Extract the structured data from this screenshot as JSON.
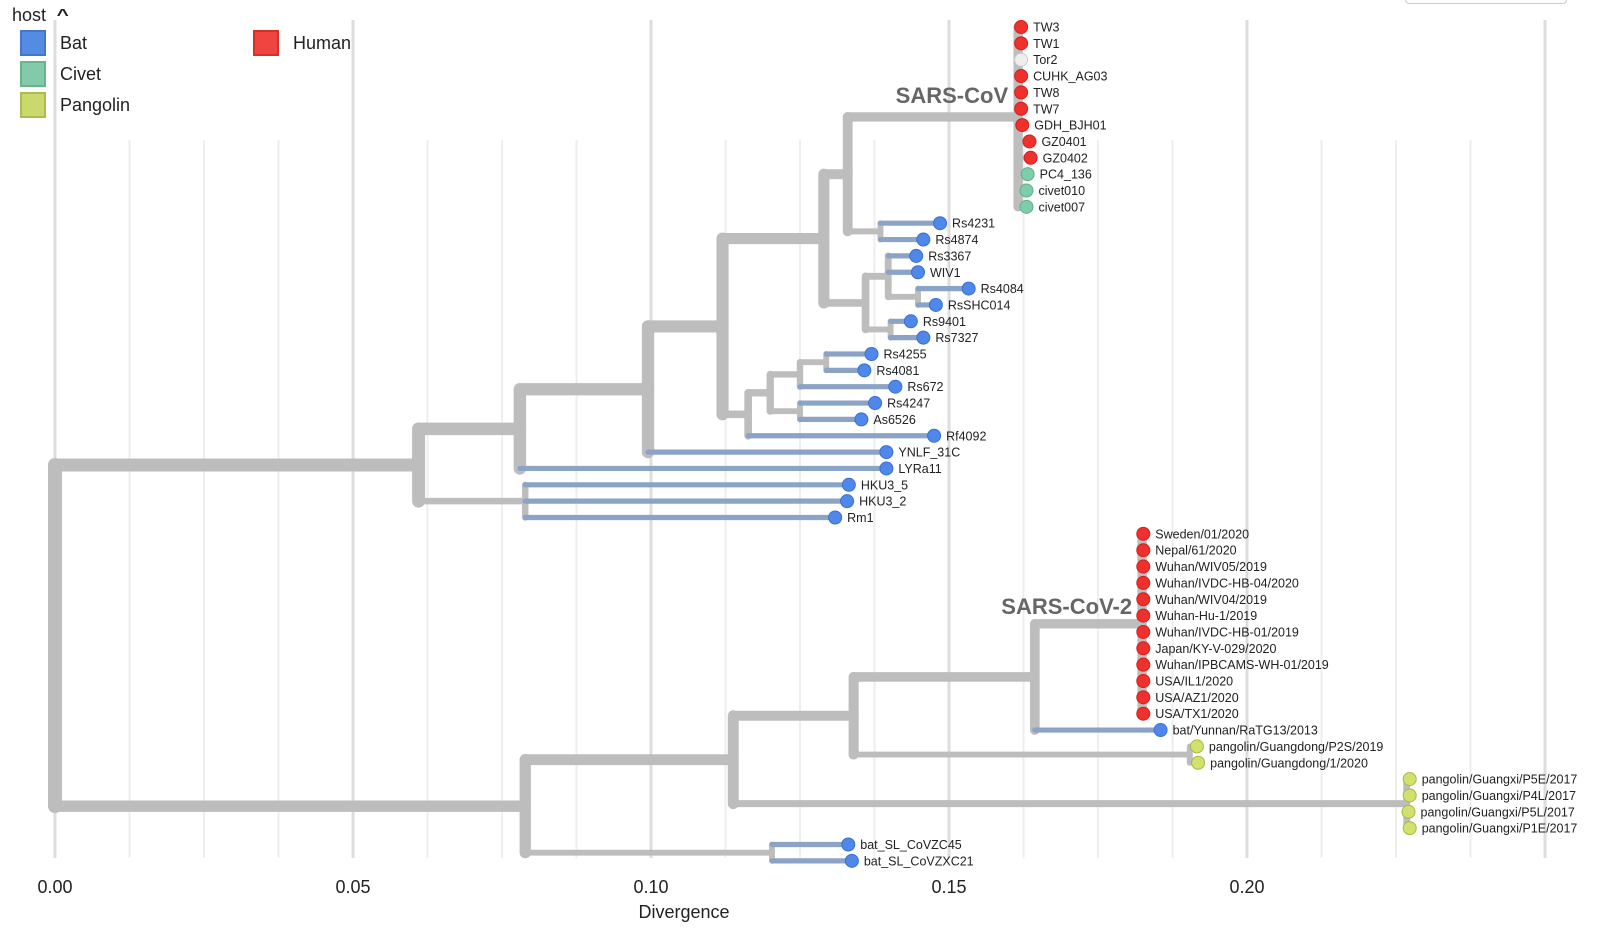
{
  "legend": {
    "title": "host",
    "toggle_icon": "chevron-up-icon",
    "items": [
      {
        "label": "Bat",
        "color": "#4c86e2",
        "border": "#3a6fcc"
      },
      {
        "label": "Civet",
        "color": "#7cc8a6",
        "border": "#5fb08a"
      },
      {
        "label": "Pangolin",
        "color": "#c8d865",
        "border": "#a8b84a"
      },
      {
        "label": "Human",
        "color": "#f03a36",
        "border": "#d42520"
      }
    ]
  },
  "colors": {
    "Bat": "#4f87ea",
    "Civet": "#7dcdab",
    "Pangolin": "#d2e16b",
    "Human": "#f0302c",
    "Unknown": "#eeeeee",
    "branch": "#bdbdbd",
    "bat_branch": "#8ba3c7",
    "grid_major": "#dddddd",
    "grid_minor": "#eeeeee"
  },
  "chart_data": {
    "type": "phylogenetic-tree",
    "xlabel": "Divergence",
    "x_ticks": [
      "0.00",
      "0.05",
      "0.10",
      "0.15",
      "0.20"
    ],
    "x_tick_values": [
      0.0,
      0.05,
      0.1,
      0.15,
      0.2
    ],
    "minor_step": 0.0125,
    "xlim": [
      -0.0093,
      0.2532
    ],
    "clade_labels": [
      {
        "text": "SARS-CoV",
        "node": "sars-cov"
      },
      {
        "text": "SARS-CoV-2",
        "node": "sars-cov-2"
      }
    ],
    "tree": {
      "id": "root",
      "div": 0.0,
      "children": [
        {
          "id": "a",
          "div": 0.061,
          "children": [
            {
              "id": "b",
              "div": 0.078,
              "children": [
                {
                  "id": "c",
                  "div": 0.0995,
                  "children": [
                    {
                      "id": "d",
                      "div": 0.112,
                      "children": [
                        {
                          "id": "e",
                          "div": 0.129,
                          "children": [
                            {
                              "id": "f",
                              "div": 0.133,
                              "children": [
                                {
                                  "id": "sars-cov",
                                  "div": 0.1616,
                                  "children": [
                                    {
                                      "name": "TW3",
                                      "div": 0.1621,
                                      "host": "Human"
                                    },
                                    {
                                      "name": "TW1",
                                      "div": 0.1621,
                                      "host": "Human"
                                    },
                                    {
                                      "name": "Tor2",
                                      "div": 0.1621,
                                      "host": "Unknown"
                                    },
                                    {
                                      "name": "CUHK_AG03",
                                      "div": 0.1621,
                                      "host": "Human"
                                    },
                                    {
                                      "name": "TW8",
                                      "div": 0.1621,
                                      "host": "Human"
                                    },
                                    {
                                      "name": "TW7",
                                      "div": 0.1621,
                                      "host": "Human"
                                    },
                                    {
                                      "name": "GDH_BJH01",
                                      "div": 0.1623,
                                      "host": "Human"
                                    },
                                    {
                                      "name": "GZ0401",
                                      "div": 0.1635,
                                      "host": "Human"
                                    },
                                    {
                                      "name": "GZ0402",
                                      "div": 0.1637,
                                      "host": "Human"
                                    },
                                    {
                                      "name": "PC4_136",
                                      "div": 0.1632,
                                      "host": "Civet"
                                    },
                                    {
                                      "name": "civet010",
                                      "div": 0.163,
                                      "host": "Civet"
                                    },
                                    {
                                      "name": "civet007",
                                      "div": 0.163,
                                      "host": "Civet"
                                    }
                                  ]
                                },
                                {
                                  "id": "g1",
                                  "div": 0.1385,
                                  "children": [
                                    {
                                      "name": "Rs4231",
                                      "div": 0.1485,
                                      "host": "Bat"
                                    },
                                    {
                                      "name": "Rs4874",
                                      "div": 0.1457,
                                      "host": "Bat"
                                    }
                                  ]
                                }
                              ]
                            },
                            {
                              "id": "g",
                              "div": 0.136,
                              "children": [
                                {
                                  "id": "h",
                                  "div": 0.1398,
                                  "children": [
                                    {
                                      "name": "Rs3367",
                                      "div": 0.1445,
                                      "host": "Bat"
                                    },
                                    {
                                      "name": "WIV1",
                                      "div": 0.1448,
                                      "host": "Bat"
                                    },
                                    {
                                      "id": "i",
                                      "div": 0.1448,
                                      "children": [
                                        {
                                          "name": "Rs4084",
                                          "div": 0.1533,
                                          "host": "Bat"
                                        },
                                        {
                                          "name": "RsSHC014",
                                          "div": 0.1478,
                                          "host": "Bat"
                                        }
                                      ]
                                    }
                                  ]
                                },
                                {
                                  "id": "j",
                                  "div": 0.1402,
                                  "children": [
                                    {
                                      "name": "Rs9401",
                                      "div": 0.1436,
                                      "host": "Bat"
                                    },
                                    {
                                      "name": "Rs7327",
                                      "div": 0.1457,
                                      "host": "Bat"
                                    }
                                  ]
                                }
                              ]
                            }
                          ]
                        },
                        {
                          "id": "k",
                          "div": 0.1163,
                          "children": [
                            {
                              "id": "l",
                              "div": 0.12,
                              "children": [
                                {
                                  "id": "m",
                                  "div": 0.125,
                                  "children": [
                                    {
                                      "id": "n",
                                      "div": 0.1294,
                                      "children": [
                                        {
                                          "name": "Rs4255",
                                          "div": 0.137,
                                          "host": "Bat"
                                        },
                                        {
                                          "name": "Rs4081",
                                          "div": 0.1358,
                                          "host": "Bat"
                                        }
                                      ]
                                    },
                                    {
                                      "name": "Rs672",
                                      "div": 0.141,
                                      "host": "Bat"
                                    }
                                  ]
                                },
                                {
                                  "id": "o",
                                  "div": 0.125,
                                  "children": [
                                    {
                                      "name": "Rs4247",
                                      "div": 0.1376,
                                      "host": "Bat"
                                    },
                                    {
                                      "name": "As6526",
                                      "div": 0.1353,
                                      "host": "Bat"
                                    }
                                  ]
                                }
                              ]
                            },
                            {
                              "name": "Rf4092",
                              "div": 0.1475,
                              "host": "Bat"
                            }
                          ]
                        }
                      ]
                    },
                    {
                      "name": "YNLF_31C",
                      "div": 0.1395,
                      "host": "Bat"
                    }
                  ]
                },
                {
                  "name": "LYRa11",
                  "div": 0.1395,
                  "host": "Bat"
                }
              ]
            },
            {
              "id": "p",
              "div": 0.0789,
              "children": [
                {
                  "name": "HKU3_5",
                  "div": 0.1332,
                  "host": "Bat"
                },
                {
                  "name": "HKU3_2",
                  "div": 0.1329,
                  "host": "Bat"
                },
                {
                  "name": "Rm1",
                  "div": 0.1309,
                  "host": "Bat"
                }
              ]
            }
          ]
        },
        {
          "id": "q",
          "div": 0.0789,
          "children": [
            {
              "id": "r",
              "div": 0.1138,
              "children": [
                {
                  "id": "s",
                  "div": 0.134,
                  "children": [
                    {
                      "id": "t",
                      "div": 0.1644,
                      "children": [
                        {
                          "id": "sars-cov-2",
                          "div": 0.1824,
                          "children": [
                            {
                              "name": "Sweden/01/2020",
                              "div": 0.1826,
                              "host": "Human"
                            },
                            {
                              "name": "Nepal/61/2020",
                              "div": 0.1826,
                              "host": "Human"
                            },
                            {
                              "name": "Wuhan/WIV05/2019",
                              "div": 0.1826,
                              "host": "Human"
                            },
                            {
                              "name": "Wuhan/IVDC-HB-04/2020",
                              "div": 0.1826,
                              "host": "Human"
                            },
                            {
                              "name": "Wuhan/WIV04/2019",
                              "div": 0.1826,
                              "host": "Human"
                            },
                            {
                              "name": "Wuhan-Hu-1/2019",
                              "div": 0.1826,
                              "host": "Human"
                            },
                            {
                              "name": "Wuhan/IVDC-HB-01/2019",
                              "div": 0.1826,
                              "host": "Human"
                            },
                            {
                              "name": "Japan/KY-V-029/2020",
                              "div": 0.1826,
                              "host": "Human"
                            },
                            {
                              "name": "Wuhan/IPBCAMS-WH-01/2019",
                              "div": 0.1826,
                              "host": "Human"
                            },
                            {
                              "name": "USA/IL1/2020",
                              "div": 0.1826,
                              "host": "Human"
                            },
                            {
                              "name": "USA/AZ1/2020",
                              "div": 0.1826,
                              "host": "Human"
                            },
                            {
                              "name": "USA/TX1/2020",
                              "div": 0.1826,
                              "host": "Human"
                            }
                          ]
                        },
                        {
                          "name": "bat/Yunnan/RaTG13/2013",
                          "div": 0.1855,
                          "host": "Bat"
                        }
                      ]
                    },
                    {
                      "id": "gd",
                      "div": 0.1904,
                      "children": [
                        {
                          "name": "pangolin/Guangdong/P2S/2019",
                          "div": 0.1916,
                          "host": "Pangolin"
                        },
                        {
                          "name": "pangolin/Guangdong/1/2020",
                          "div": 0.1918,
                          "host": "Pangolin"
                        }
                      ]
                    }
                  ]
                },
                {
                  "id": "gx",
                  "div": 0.2268,
                  "children": [
                    {
                      "name": "pangolin/Guangxi/P5E/2017",
                      "div": 0.2273,
                      "host": "Pangolin"
                    },
                    {
                      "name": "pangolin/Guangxi/P4L/2017",
                      "div": 0.2273,
                      "host": "Pangolin"
                    },
                    {
                      "name": "pangolin/Guangxi/P5L/2017",
                      "div": 0.2271,
                      "host": "Pangolin"
                    },
                    {
                      "name": "pangolin/Guangxi/P1E/2017",
                      "div": 0.2273,
                      "host": "Pangolin"
                    }
                  ]
                }
              ]
            },
            {
              "id": "bsl",
              "div": 0.1203,
              "children": [
                {
                  "name": "bat_SL_CoVZC45",
                  "div": 0.1331,
                  "host": "Bat"
                },
                {
                  "name": "bat_SL_CoVZXC21",
                  "div": 0.1337,
                  "host": "Bat"
                }
              ]
            }
          ]
        }
      ]
    }
  }
}
